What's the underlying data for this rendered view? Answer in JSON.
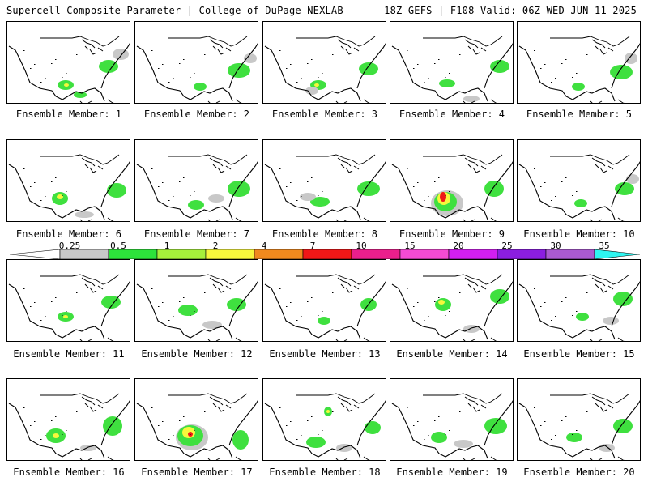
{
  "header": {
    "title_left": "Supercell Composite Parameter | College of DuPage NEXLAB",
    "title_right": "18Z GEFS | F108 Valid: 06Z WED JUN 11 2025"
  },
  "panels": [
    {
      "caption": "Ensemble Member: 1",
      "fields": [
        {
          "lvl": "green",
          "cx": 72,
          "cy": 78,
          "rx": 10,
          "ry": 6
        },
        {
          "lvl": "green",
          "cx": 125,
          "cy": 55,
          "rx": 12,
          "ry": 8
        },
        {
          "lvl": "gray",
          "cx": 140,
          "cy": 40,
          "rx": 10,
          "ry": 7
        },
        {
          "lvl": "green",
          "cx": 90,
          "cy": 90,
          "rx": 8,
          "ry": 4
        },
        {
          "lvl": "yellow",
          "cx": 73,
          "cy": 78,
          "rx": 3,
          "ry": 2
        }
      ]
    },
    {
      "caption": "Ensemble Member: 2",
      "fields": [
        {
          "lvl": "green",
          "cx": 80,
          "cy": 80,
          "rx": 8,
          "ry": 5
        },
        {
          "lvl": "green",
          "cx": 128,
          "cy": 60,
          "rx": 14,
          "ry": 9
        },
        {
          "lvl": "gray",
          "cx": 142,
          "cy": 45,
          "rx": 8,
          "ry": 6
        }
      ]
    },
    {
      "caption": "Ensemble Member: 3",
      "fields": [
        {
          "lvl": "green",
          "cx": 68,
          "cy": 78,
          "rx": 10,
          "ry": 6
        },
        {
          "lvl": "green",
          "cx": 130,
          "cy": 58,
          "rx": 12,
          "ry": 8
        },
        {
          "lvl": "gray",
          "cx": 60,
          "cy": 85,
          "rx": 8,
          "ry": 5
        },
        {
          "lvl": "yellow",
          "cx": 66,
          "cy": 78,
          "rx": 3,
          "ry": 2
        }
      ]
    },
    {
      "caption": "Ensemble Member: 4",
      "fields": [
        {
          "lvl": "green",
          "cx": 70,
          "cy": 76,
          "rx": 10,
          "ry": 5
        },
        {
          "lvl": "green",
          "cx": 135,
          "cy": 55,
          "rx": 12,
          "ry": 8
        },
        {
          "lvl": "gray",
          "cx": 100,
          "cy": 95,
          "rx": 10,
          "ry": 4
        }
      ]
    },
    {
      "caption": "Ensemble Member: 5",
      "fields": [
        {
          "lvl": "green",
          "cx": 75,
          "cy": 80,
          "rx": 8,
          "ry": 5
        },
        {
          "lvl": "green",
          "cx": 128,
          "cy": 62,
          "rx": 14,
          "ry": 9
        },
        {
          "lvl": "gray",
          "cx": 140,
          "cy": 45,
          "rx": 8,
          "ry": 7
        }
      ]
    },
    {
      "caption": "Ensemble Member: 6",
      "fields": [
        {
          "lvl": "green",
          "cx": 65,
          "cy": 72,
          "rx": 10,
          "ry": 8
        },
        {
          "lvl": "green",
          "cx": 135,
          "cy": 62,
          "rx": 12,
          "ry": 9
        },
        {
          "lvl": "yellow",
          "cx": 65,
          "cy": 70,
          "rx": 4,
          "ry": 3
        },
        {
          "lvl": "gray",
          "cx": 95,
          "cy": 92,
          "rx": 12,
          "ry": 4
        }
      ]
    },
    {
      "caption": "Ensemble Member: 7",
      "fields": [
        {
          "lvl": "green",
          "cx": 75,
          "cy": 80,
          "rx": 10,
          "ry": 6
        },
        {
          "lvl": "green",
          "cx": 128,
          "cy": 60,
          "rx": 14,
          "ry": 10
        },
        {
          "lvl": "gray",
          "cx": 100,
          "cy": 72,
          "rx": 10,
          "ry": 5
        }
      ]
    },
    {
      "caption": "Ensemble Member: 8",
      "fields": [
        {
          "lvl": "green",
          "cx": 70,
          "cy": 76,
          "rx": 12,
          "ry": 6
        },
        {
          "lvl": "green",
          "cx": 130,
          "cy": 60,
          "rx": 14,
          "ry": 9
        },
        {
          "lvl": "gray",
          "cx": 55,
          "cy": 70,
          "rx": 10,
          "ry": 5
        }
      ]
    },
    {
      "caption": "Ensemble Member: 9",
      "fields": [
        {
          "lvl": "gray",
          "cx": 70,
          "cy": 78,
          "rx": 20,
          "ry": 16
        },
        {
          "lvl": "green",
          "cx": 68,
          "cy": 76,
          "rx": 14,
          "ry": 12
        },
        {
          "lvl": "yellow",
          "cx": 66,
          "cy": 72,
          "rx": 8,
          "ry": 8
        },
        {
          "lvl": "red",
          "cx": 65,
          "cy": 70,
          "rx": 4,
          "ry": 6
        },
        {
          "lvl": "green",
          "cx": 128,
          "cy": 60,
          "rx": 12,
          "ry": 10
        }
      ]
    },
    {
      "caption": "Ensemble Member: 10",
      "fields": [
        {
          "lvl": "green",
          "cx": 78,
          "cy": 78,
          "rx": 8,
          "ry": 5
        },
        {
          "lvl": "green",
          "cx": 132,
          "cy": 60,
          "rx": 12,
          "ry": 8
        },
        {
          "lvl": "gray",
          "cx": 142,
          "cy": 48,
          "rx": 8,
          "ry": 6
        }
      ]
    },
    {
      "caption": "Ensemble Member: 11",
      "fields": [
        {
          "lvl": "green",
          "cx": 72,
          "cy": 70,
          "rx": 10,
          "ry": 6
        },
        {
          "lvl": "green",
          "cx": 128,
          "cy": 52,
          "rx": 12,
          "ry": 8
        },
        {
          "lvl": "yellow",
          "cx": 72,
          "cy": 70,
          "rx": 3,
          "ry": 2
        }
      ]
    },
    {
      "caption": "Ensemble Member: 12",
      "fields": [
        {
          "lvl": "green",
          "cx": 65,
          "cy": 62,
          "rx": 12,
          "ry": 7
        },
        {
          "lvl": "green",
          "cx": 125,
          "cy": 55,
          "rx": 12,
          "ry": 8
        },
        {
          "lvl": "gray",
          "cx": 95,
          "cy": 80,
          "rx": 12,
          "ry": 5
        }
      ]
    },
    {
      "caption": "Ensemble Member: 13",
      "fields": [
        {
          "lvl": "green",
          "cx": 75,
          "cy": 75,
          "rx": 8,
          "ry": 5
        },
        {
          "lvl": "green",
          "cx": 130,
          "cy": 55,
          "rx": 10,
          "ry": 8
        }
      ]
    },
    {
      "caption": "Ensemble Member: 14",
      "fields": [
        {
          "lvl": "green",
          "cx": 65,
          "cy": 55,
          "rx": 10,
          "ry": 8
        },
        {
          "lvl": "yellow",
          "cx": 63,
          "cy": 52,
          "rx": 4,
          "ry": 3
        },
        {
          "lvl": "green",
          "cx": 135,
          "cy": 45,
          "rx": 12,
          "ry": 9
        },
        {
          "lvl": "gray",
          "cx": 100,
          "cy": 85,
          "rx": 10,
          "ry": 5
        }
      ]
    },
    {
      "caption": "Ensemble Member: 15",
      "fields": [
        {
          "lvl": "green",
          "cx": 80,
          "cy": 70,
          "rx": 8,
          "ry": 5
        },
        {
          "lvl": "green",
          "cx": 130,
          "cy": 48,
          "rx": 12,
          "ry": 9
        },
        {
          "lvl": "gray",
          "cx": 115,
          "cy": 75,
          "rx": 10,
          "ry": 5
        }
      ]
    },
    {
      "caption": "Ensemble Member: 16",
      "fields": [
        {
          "lvl": "green",
          "cx": 60,
          "cy": 70,
          "rx": 12,
          "ry": 9
        },
        {
          "lvl": "yellow",
          "cx": 60,
          "cy": 70,
          "rx": 4,
          "ry": 3
        },
        {
          "lvl": "green",
          "cx": 130,
          "cy": 58,
          "rx": 12,
          "ry": 12
        },
        {
          "lvl": "gray",
          "cx": 100,
          "cy": 85,
          "rx": 10,
          "ry": 4
        }
      ]
    },
    {
      "caption": "Ensemble Member: 17",
      "fields": [
        {
          "lvl": "gray",
          "cx": 70,
          "cy": 72,
          "rx": 20,
          "ry": 16
        },
        {
          "lvl": "green",
          "cx": 68,
          "cy": 70,
          "rx": 16,
          "ry": 13
        },
        {
          "lvl": "yellow",
          "cx": 66,
          "cy": 66,
          "rx": 8,
          "ry": 7
        },
        {
          "lvl": "red",
          "cx": 68,
          "cy": 68,
          "rx": 3,
          "ry": 3
        },
        {
          "lvl": "green",
          "cx": 130,
          "cy": 75,
          "rx": 10,
          "ry": 12
        }
      ]
    },
    {
      "caption": "Ensemble Member: 18",
      "fields": [
        {
          "lvl": "green",
          "cx": 80,
          "cy": 40,
          "rx": 5,
          "ry": 6
        },
        {
          "lvl": "yellow",
          "cx": 80,
          "cy": 40,
          "rx": 2,
          "ry": 2
        },
        {
          "lvl": "green",
          "cx": 65,
          "cy": 78,
          "rx": 12,
          "ry": 7
        },
        {
          "lvl": "gray",
          "cx": 100,
          "cy": 85,
          "rx": 10,
          "ry": 5
        },
        {
          "lvl": "green",
          "cx": 135,
          "cy": 60,
          "rx": 10,
          "ry": 8
        }
      ]
    },
    {
      "caption": "Ensemble Member: 19",
      "fields": [
        {
          "lvl": "green",
          "cx": 60,
          "cy": 72,
          "rx": 10,
          "ry": 7
        },
        {
          "lvl": "gray",
          "cx": 90,
          "cy": 80,
          "rx": 12,
          "ry": 5
        },
        {
          "lvl": "green",
          "cx": 130,
          "cy": 58,
          "rx": 14,
          "ry": 10
        }
      ]
    },
    {
      "caption": "Ensemble Member: 20",
      "fields": [
        {
          "lvl": "green",
          "cx": 70,
          "cy": 72,
          "rx": 10,
          "ry": 6
        },
        {
          "lvl": "green",
          "cx": 130,
          "cy": 58,
          "rx": 12,
          "ry": 9
        },
        {
          "lvl": "gray",
          "cx": 110,
          "cy": 85,
          "rx": 10,
          "ry": 5
        }
      ]
    }
  ],
  "colorbar": {
    "labels": [
      "0.25",
      "0.5",
      "1",
      "2",
      "4",
      "7",
      "10",
      "15",
      "20",
      "25",
      "30",
      "35"
    ],
    "colors": [
      "#ffffff",
      "#c8c8c8",
      "#2de23b",
      "#a6f03b",
      "#f7f73c",
      "#f08a1e",
      "#f01717",
      "#ea1f8c",
      "#f34bd3",
      "#d21ff0",
      "#8b1ee0",
      "#aa5ad0",
      "#2ef5f0"
    ]
  },
  "field_colors": {
    "gray": "#c8c8c8",
    "green": "#3fe03f",
    "yellow": "#f7f73c",
    "red": "#f01717"
  }
}
